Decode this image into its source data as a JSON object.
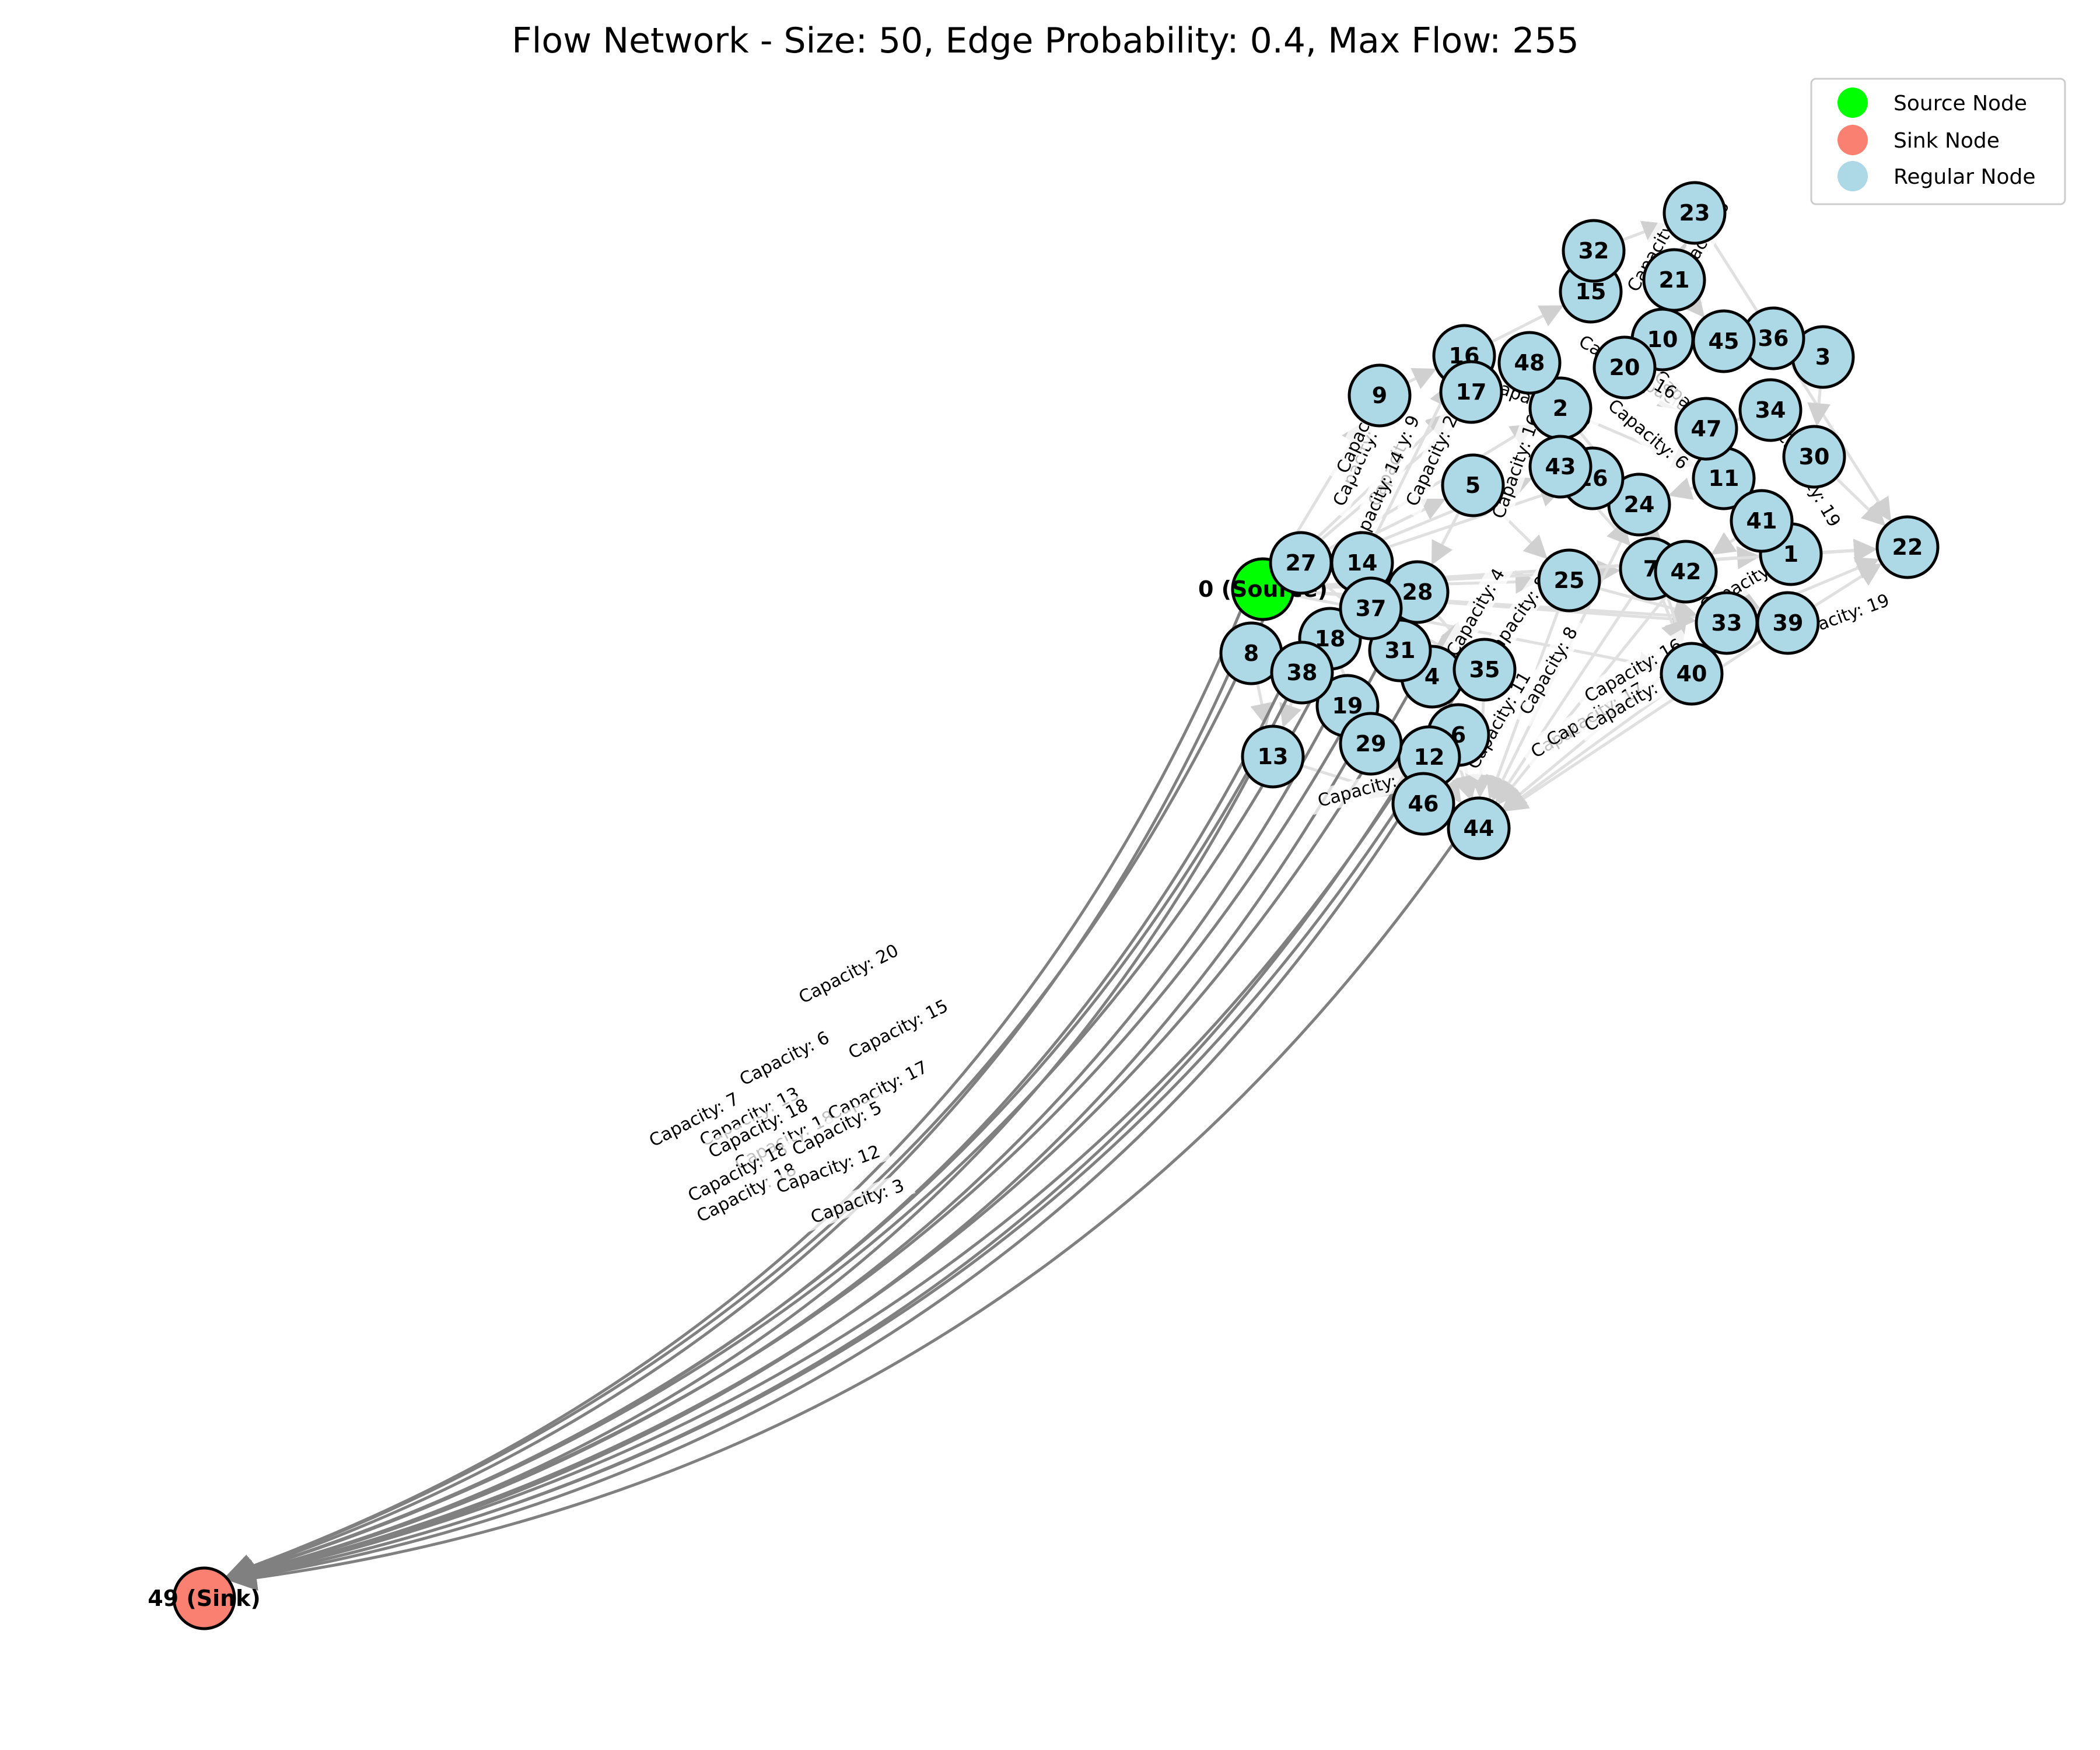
{
  "title": "Flow Network - Size: 50, Edge Probability: 0.4, Max Flow: 255",
  "colors": {
    "source": "#00ff00",
    "sink": "#fa8072",
    "regular": "#add8e6",
    "edge_sink": "#808080",
    "edge_internal": "#e0e0e0",
    "node_border": "#000000"
  },
  "legend": [
    {
      "label": "Source Node",
      "color": "#00ff00"
    },
    {
      "label": "Sink Node",
      "color": "#fa8072"
    },
    {
      "label": "Regular Node",
      "color": "#add8e6"
    }
  ],
  "nodes": [
    {
      "id": 0,
      "label": "0 (Source)",
      "type": "source"
    },
    {
      "id": 1,
      "label": "1",
      "type": "regular"
    },
    {
      "id": 2,
      "label": "2",
      "type": "regular"
    },
    {
      "id": 3,
      "label": "3",
      "type": "regular"
    },
    {
      "id": 4,
      "label": "4",
      "type": "regular"
    },
    {
      "id": 5,
      "label": "5",
      "type": "regular"
    },
    {
      "id": 6,
      "label": "6",
      "type": "regular"
    },
    {
      "id": 7,
      "label": "7",
      "type": "regular"
    },
    {
      "id": 8,
      "label": "8",
      "type": "regular"
    },
    {
      "id": 9,
      "label": "9",
      "type": "regular"
    },
    {
      "id": 10,
      "label": "10",
      "type": "regular"
    },
    {
      "id": 11,
      "label": "11",
      "type": "regular"
    },
    {
      "id": 12,
      "label": "12",
      "type": "regular"
    },
    {
      "id": 13,
      "label": "13",
      "type": "regular"
    },
    {
      "id": 14,
      "label": "14",
      "type": "regular"
    },
    {
      "id": 15,
      "label": "15",
      "type": "regular"
    },
    {
      "id": 16,
      "label": "16",
      "type": "regular"
    },
    {
      "id": 17,
      "label": "17",
      "type": "regular"
    },
    {
      "id": 18,
      "label": "18",
      "type": "regular"
    },
    {
      "id": 19,
      "label": "19",
      "type": "regular"
    },
    {
      "id": 20,
      "label": "20",
      "type": "regular"
    },
    {
      "id": 21,
      "label": "21",
      "type": "regular"
    },
    {
      "id": 22,
      "label": "22",
      "type": "regular"
    },
    {
      "id": 23,
      "label": "23",
      "type": "regular"
    },
    {
      "id": 24,
      "label": "24",
      "type": "regular"
    },
    {
      "id": 25,
      "label": "25",
      "type": "regular"
    },
    {
      "id": 26,
      "label": "26",
      "type": "regular"
    },
    {
      "id": 27,
      "label": "27",
      "type": "regular"
    },
    {
      "id": 28,
      "label": "28",
      "type": "regular"
    },
    {
      "id": 29,
      "label": "29",
      "type": "regular"
    },
    {
      "id": 30,
      "label": "30",
      "type": "regular"
    },
    {
      "id": 31,
      "label": "31",
      "type": "regular"
    },
    {
      "id": 32,
      "label": "32",
      "type": "regular"
    },
    {
      "id": 33,
      "label": "33",
      "type": "regular"
    },
    {
      "id": 34,
      "label": "34",
      "type": "regular"
    },
    {
      "id": 35,
      "label": "35",
      "type": "regular"
    },
    {
      "id": 36,
      "label": "36",
      "type": "regular"
    },
    {
      "id": 37,
      "label": "37",
      "type": "regular"
    },
    {
      "id": 38,
      "label": "38",
      "type": "regular"
    },
    {
      "id": 39,
      "label": "39",
      "type": "regular"
    },
    {
      "id": 40,
      "label": "40",
      "type": "regular"
    },
    {
      "id": 41,
      "label": "41",
      "type": "regular"
    },
    {
      "id": 42,
      "label": "42",
      "type": "regular"
    },
    {
      "id": 43,
      "label": "43",
      "type": "regular"
    },
    {
      "id": 44,
      "label": "44",
      "type": "regular"
    },
    {
      "id": 45,
      "label": "45",
      "type": "regular"
    },
    {
      "id": 46,
      "label": "46",
      "type": "regular"
    },
    {
      "id": 47,
      "label": "47",
      "type": "regular"
    },
    {
      "id": 48,
      "label": "48",
      "type": "regular"
    },
    {
      "id": 49,
      "label": "49 (Sink)",
      "type": "sink"
    }
  ],
  "sink_edges": [
    {
      "from": 0,
      "to": 49
    },
    {
      "from": 27,
      "to": 49
    },
    {
      "from": 8,
      "to": 49
    },
    {
      "from": 38,
      "to": 49
    },
    {
      "from": 18,
      "to": 49
    },
    {
      "from": 13,
      "to": 49
    },
    {
      "from": 19,
      "to": 49
    },
    {
      "from": 29,
      "to": 49
    },
    {
      "from": 31,
      "to": 49
    },
    {
      "from": 4,
      "to": 49
    },
    {
      "from": 12,
      "to": 49
    },
    {
      "from": 6,
      "to": 49
    },
    {
      "from": 46,
      "to": 49
    },
    {
      "from": 44,
      "to": 49
    },
    {
      "from": 35,
      "to": 49
    },
    {
      "from": 37,
      "to": 49
    }
  ],
  "internal_edges": [
    {
      "from": 0,
      "to": 9
    },
    {
      "from": 0,
      "to": 14
    },
    {
      "from": 0,
      "to": 17
    },
    {
      "from": 0,
      "to": 5
    },
    {
      "from": 0,
      "to": 43
    },
    {
      "from": 0,
      "to": 26
    },
    {
      "from": 0,
      "to": 25
    },
    {
      "from": 0,
      "to": 7
    },
    {
      "from": 0,
      "to": 1
    },
    {
      "from": 0,
      "to": 22
    },
    {
      "from": 0,
      "to": 40
    },
    {
      "from": 0,
      "to": 39
    },
    {
      "from": 0,
      "to": 33
    },
    {
      "from": 0,
      "to": 2
    },
    {
      "from": 0,
      "to": 48
    },
    {
      "from": 14,
      "to": 16
    },
    {
      "from": 9,
      "to": 16
    },
    {
      "from": 16,
      "to": 15
    },
    {
      "from": 15,
      "to": 32
    },
    {
      "from": 32,
      "to": 23
    },
    {
      "from": 21,
      "to": 23
    },
    {
      "from": 23,
      "to": 22
    },
    {
      "from": 10,
      "to": 45
    },
    {
      "from": 45,
      "to": 36
    },
    {
      "from": 36,
      "to": 3
    },
    {
      "from": 3,
      "to": 30
    },
    {
      "from": 30,
      "to": 22
    },
    {
      "from": 34,
      "to": 30
    },
    {
      "from": 47,
      "to": 11
    },
    {
      "from": 11,
      "to": 41
    },
    {
      "from": 41,
      "to": 1
    },
    {
      "from": 1,
      "to": 22
    },
    {
      "from": 42,
      "to": 39
    },
    {
      "from": 39,
      "to": 22
    },
    {
      "from": 33,
      "to": 22
    },
    {
      "from": 40,
      "to": 44
    },
    {
      "from": 39,
      "to": 44
    },
    {
      "from": 33,
      "to": 44
    },
    {
      "from": 42,
      "to": 44
    },
    {
      "from": 7,
      "to": 44
    },
    {
      "from": 25,
      "to": 44
    },
    {
      "from": 24,
      "to": 44
    },
    {
      "from": 35,
      "to": 44
    },
    {
      "from": 4,
      "to": 44
    },
    {
      "from": 6,
      "to": 44
    },
    {
      "from": 12,
      "to": 44
    },
    {
      "from": 46,
      "to": 44
    },
    {
      "from": 29,
      "to": 46
    },
    {
      "from": 19,
      "to": 46
    },
    {
      "from": 13,
      "to": 46
    },
    {
      "from": 38,
      "to": 13
    },
    {
      "from": 8,
      "to": 13
    },
    {
      "from": 18,
      "to": 29
    },
    {
      "from": 31,
      "to": 6
    },
    {
      "from": 37,
      "to": 35
    },
    {
      "from": 28,
      "to": 35
    },
    {
      "from": 27,
      "to": 31
    },
    {
      "from": 14,
      "to": 28
    },
    {
      "from": 5,
      "to": 28
    },
    {
      "from": 2,
      "to": 24
    },
    {
      "from": 43,
      "to": 7
    },
    {
      "from": 26,
      "to": 42
    },
    {
      "from": 20,
      "to": 47
    },
    {
      "from": 48,
      "to": 2
    },
    {
      "from": 17,
      "to": 48
    },
    {
      "from": 10,
      "to": 20
    },
    {
      "from": 21,
      "to": 45
    },
    {
      "from": 34,
      "to": 47
    },
    {
      "from": 11,
      "to": 24
    },
    {
      "from": 41,
      "to": 42
    },
    {
      "from": 25,
      "to": 33
    },
    {
      "from": 24,
      "to": 40
    },
    {
      "from": 7,
      "to": 40
    },
    {
      "from": 5,
      "to": 25
    },
    {
      "from": 2,
      "to": 11
    }
  ],
  "capacity_labels": [
    "Capacity: 13",
    "Capacity: 20",
    "Capacity: 6",
    "Capacity: 18",
    "Capacity: 18",
    "Capacity: 18",
    "Capacity: 18",
    "Capacity: 15",
    "Capacity: 17",
    "Capacity: 5",
    "Capacity: 12",
    "Capacity: 3",
    "Capacity: 7",
    "Capacity: 5",
    "Capacity: 6",
    "Capacity: 19",
    "Capacity: 9",
    "Capacity: 6",
    "Capacity: 5",
    "Capacity: 16",
    "Capacity: 6",
    "Capacity: 16",
    "Capacity: 2",
    "Capacity: 14",
    "Capacity: 9",
    "Capacity: 13",
    "Capacity: 16",
    "Capacity: 8",
    "Capacity: 4",
    "Capacity: 8",
    "Capacity: 5",
    "Capacity: 17",
    "Capacity: 16",
    "Capacity: 10",
    "Capacity: 19",
    "Capacity: 1",
    "Capacity: 11",
    "Capacity: 12"
  ]
}
